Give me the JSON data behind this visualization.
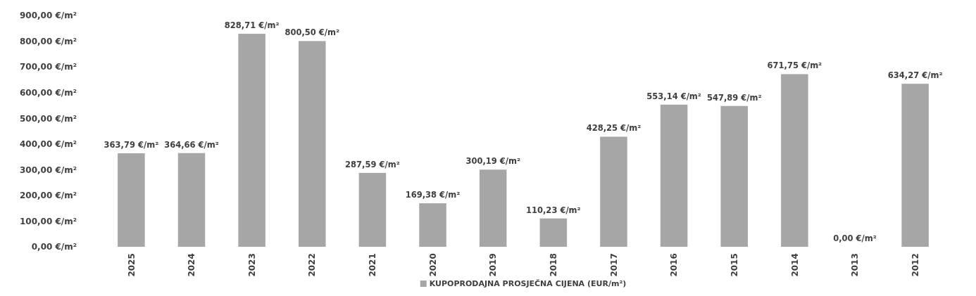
{
  "chart_data": {
    "type": "bar",
    "categories": [
      "2025",
      "2024",
      "2023",
      "2022",
      "2021",
      "2020",
      "2019",
      "2018",
      "2017",
      "2016",
      "2015",
      "2014",
      "2013",
      "2012"
    ],
    "series": [
      {
        "name": "KUPOPRODAJNA PROSJEČNA CIJENA (EUR/m²)",
        "color": "#a6a6a6",
        "values": [
          363.79,
          364.66,
          828.71,
          800.5,
          287.59,
          169.38,
          300.19,
          110.23,
          428.25,
          553.14,
          547.89,
          671.75,
          0.0,
          634.27
        ],
        "value_labels": [
          "363,79 €/m²",
          "364,66 €/m²",
          "828,71 €/m²",
          "800,50 €/m²",
          "287,59 €/m²",
          "169,38 €/m²",
          "300,19 €/m²",
          "110,23 €/m²",
          "428,25 €/m²",
          "553,14 €/m²",
          "547,89 €/m²",
          "671,75 €/m²",
          "0,00 €/m²",
          "634,27 €/m²"
        ]
      }
    ],
    "ylim": [
      0,
      900
    ],
    "yticks": [
      {
        "value": 0,
        "label": "0,00 €/m²"
      },
      {
        "value": 100,
        "label": "100,00 €/m²"
      },
      {
        "value": 200,
        "label": "200,00 €/m²"
      },
      {
        "value": 300,
        "label": "300,00 €/m²"
      },
      {
        "value": 400,
        "label": "400,00 €/m²"
      },
      {
        "value": 500,
        "label": "500,00 €/m²"
      },
      {
        "value": 600,
        "label": "600,00 €/m²"
      },
      {
        "value": 700,
        "label": "700,00 €/m²"
      },
      {
        "value": 800,
        "label": "800,00 €/m²"
      },
      {
        "value": 900,
        "label": "900,00 €/m²"
      }
    ],
    "legend": "bottom"
  }
}
